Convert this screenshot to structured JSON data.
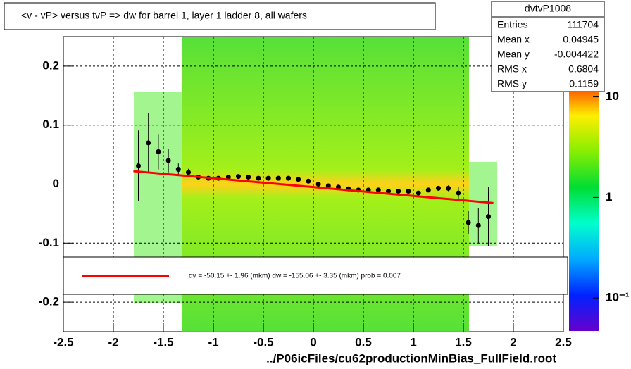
{
  "chart_data": {
    "type": "profile",
    "title": "<v - vP>       versus  tvP =>  dw for barrel 1, layer 1 ladder 8, all wafers",
    "x_label": "../P06icFiles/cu62productionMinBias_FullField.root",
    "xlim": [
      -2.5,
      2.5
    ],
    "ylim": [
      -0.25,
      0.25
    ],
    "xticks": [
      -2.5,
      -2,
      -1.5,
      -1,
      -0.5,
      0,
      0.5,
      1,
      1.5,
      2,
      2.5
    ],
    "yticks": [
      -0.2,
      -0.1,
      0,
      0.1,
      0.2
    ],
    "grid": true,
    "series": [
      {
        "name": "profile",
        "color": "#000000",
        "x": [
          -1.75,
          -1.65,
          -1.55,
          -1.45,
          -1.35,
          -1.25,
          -1.15,
          -1.05,
          -0.95,
          -0.85,
          -0.75,
          -0.65,
          -0.55,
          -0.45,
          -0.35,
          -0.25,
          -0.15,
          -0.05,
          0.05,
          0.15,
          0.25,
          0.35,
          0.45,
          0.55,
          0.65,
          0.75,
          0.85,
          0.95,
          1.05,
          1.15,
          1.25,
          1.35,
          1.45,
          1.55,
          1.65,
          1.75
        ],
        "values": [
          0.031,
          0.07,
          0.055,
          0.04,
          0.025,
          0.02,
          0.012,
          0.01,
          0.01,
          0.012,
          0.013,
          0.012,
          0.01,
          0.01,
          0.01,
          0.01,
          0.008,
          0.005,
          0.0,
          -0.003,
          -0.005,
          -0.008,
          -0.01,
          -0.01,
          -0.01,
          -0.012,
          -0.012,
          -0.012,
          -0.015,
          -0.01,
          -0.007,
          -0.007,
          -0.015,
          -0.065,
          -0.07,
          -0.055
        ],
        "errors": [
          0.06,
          0.05,
          0.03,
          0.02,
          0.01,
          0.006,
          0.004,
          0.003,
          0.002,
          0.002,
          0.002,
          0.002,
          0.002,
          0.002,
          0.002,
          0.002,
          0.002,
          0.002,
          0.002,
          0.002,
          0.002,
          0.002,
          0.002,
          0.002,
          0.002,
          0.002,
          0.002,
          0.002,
          0.003,
          0.003,
          0.004,
          0.005,
          0.01,
          0.02,
          0.03,
          0.05
        ]
      },
      {
        "name": "fit",
        "color": "#ff0000",
        "x": [
          -1.8,
          1.8
        ],
        "values": [
          0.022,
          -0.032
        ]
      }
    ],
    "legend_text": "dv =  -50.15 +-  1.96 (mkm) dw = -155.06 +-  3.35 (mkm) prob = 0.007",
    "stats": {
      "title": "dvtvP1008",
      "rows": [
        [
          "Entries",
          "111704"
        ],
        [
          "Mean x",
          "0.04945"
        ],
        [
          "Mean y",
          "-0.004422"
        ],
        [
          "RMS x",
          "0.6804"
        ],
        [
          "RMS y",
          "0.1159"
        ]
      ]
    },
    "colorbar": {
      "log": true,
      "zlim": [
        0.047,
        11.3
      ],
      "ticks": [
        {
          "value": 10,
          "label": "10"
        },
        1,
        {
          "value": 0.1,
          "label": "10⁻¹"
        }
      ]
    }
  }
}
